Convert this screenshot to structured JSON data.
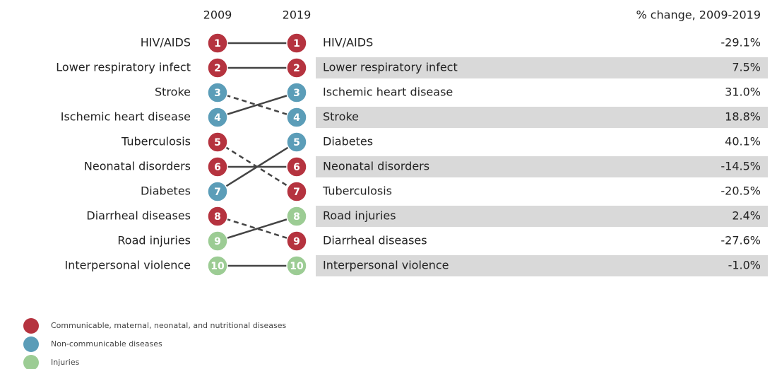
{
  "header": {
    "year_left": "2009",
    "year_right": "2019",
    "change_title": "% change, 2009-2019"
  },
  "ranks_2009": [
    {
      "label": "HIV/AIDS",
      "rank": 1,
      "color": "#b5333f"
    },
    {
      "label": "Lower respiratory infect",
      "rank": 2,
      "color": "#b5333f"
    },
    {
      "label": "Stroke",
      "rank": 3,
      "color": "#5b9db8"
    },
    {
      "label": "Ischemic heart disease",
      "rank": 4,
      "color": "#5b9db8"
    },
    {
      "label": "Tuberculosis",
      "rank": 5,
      "color": "#b5333f"
    },
    {
      "label": "Neonatal disorders",
      "rank": 6,
      "color": "#b5333f"
    },
    {
      "label": "Diabetes",
      "rank": 7,
      "color": "#5b9db8"
    },
    {
      "label": "Diarrheal diseases",
      "rank": 8,
      "color": "#b5333f"
    },
    {
      "label": "Road injuries",
      "rank": 9,
      "color": "#9ccc94"
    },
    {
      "label": "Interpersonal violence",
      "rank": 10,
      "color": "#9ccc94"
    }
  ],
  "ranks_2019": [
    {
      "label": "HIV/AIDS",
      "rank": 1,
      "color": "#b5333f",
      "change": "-29.1%"
    },
    {
      "label": "Lower respiratory infect",
      "rank": 2,
      "color": "#b5333f",
      "change": "7.5%"
    },
    {
      "label": "Ischemic heart disease",
      "rank": 3,
      "color": "#5b9db8",
      "change": "31.0%"
    },
    {
      "label": "Stroke",
      "rank": 4,
      "color": "#5b9db8",
      "change": "18.8%"
    },
    {
      "label": "Diabetes",
      "rank": 5,
      "color": "#5b9db8",
      "change": "40.1%"
    },
    {
      "label": "Neonatal disorders",
      "rank": 6,
      "color": "#b5333f",
      "change": "-14.5%"
    },
    {
      "label": "Tuberculosis",
      "rank": 7,
      "color": "#b5333f",
      "change": "-20.5%"
    },
    {
      "label": "Road injuries",
      "rank": 8,
      "color": "#9ccc94",
      "change": "2.4%"
    },
    {
      "label": "Diarrheal diseases",
      "rank": 9,
      "color": "#b5333f",
      "change": "-27.6%"
    },
    {
      "label": "Interpersonal violence",
      "rank": 10,
      "color": "#9ccc94",
      "change": "-1.0%"
    }
  ],
  "legend": [
    {
      "label": "Communicable, maternal, neonatal, and nutritional diseases",
      "color": "#b5333f"
    },
    {
      "label": "Non-communicable diseases",
      "color": "#5b9db8"
    },
    {
      "label": "Injuries",
      "color": "#9ccc94"
    }
  ]
}
